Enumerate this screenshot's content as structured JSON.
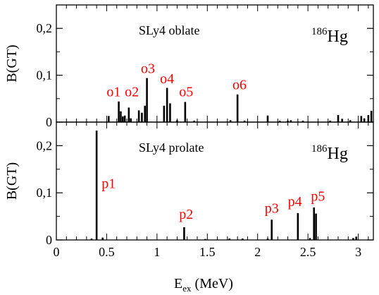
{
  "chart_data": {
    "type": "bar",
    "xlabel_main": "E",
    "xlabel_sub": "ex",
    "xlabel_unit": " (MeV)",
    "xlim": [
      0,
      3.15
    ],
    "x_ticks": [
      0,
      0.5,
      1,
      1.5,
      2,
      2.5,
      3
    ],
    "x_tick_labels": [
      "0",
      "0.5",
      "1",
      "1.5",
      "2",
      "2.5",
      "3"
    ],
    "panels": [
      {
        "name": "oblate",
        "title": "SLy4 oblate",
        "nucleus_mass": "186",
        "nucleus_symbol": "Hg",
        "ylabel": "B(GT)",
        "ylim": [
          0,
          0.25
        ],
        "y_ticks": [
          0,
          0.1,
          0.2
        ],
        "y_tick_labels": [
          "0",
          "0,1",
          "0,2"
        ],
        "x": [
          0.52,
          0.62,
          0.64,
          0.66,
          0.68,
          0.72,
          0.74,
          0.82,
          0.85,
          0.88,
          0.9,
          1.07,
          1.1,
          1.13,
          1.2,
          1.28,
          1.37,
          1.73,
          1.8,
          1.87,
          2.1,
          2.22,
          2.3,
          2.33,
          2.45,
          2.72,
          2.8,
          2.84,
          2.92,
          3.03,
          3.06,
          3.1,
          3.13
        ],
        "values": [
          0.013,
          0.044,
          0.023,
          0.012,
          0.014,
          0.031,
          0.008,
          0.025,
          0.02,
          0.035,
          0.094,
          0.035,
          0.073,
          0.04,
          0.004,
          0.043,
          0.003,
          0.004,
          0.059,
          0.003,
          0.014,
          0.003,
          0.003,
          0.004,
          0.003,
          0.003,
          0.015,
          0.007,
          0.004,
          0.013,
          0.008,
          0.015,
          0.024
        ],
        "annotations": [
          {
            "text": "o1",
            "x": 0.57,
            "y": 0.055
          },
          {
            "text": "o2",
            "x": 0.75,
            "y": 0.055
          },
          {
            "text": "o3",
            "x": 0.91,
            "y": 0.105
          },
          {
            "text": "o4",
            "x": 1.1,
            "y": 0.083
          },
          {
            "text": "o5",
            "x": 1.29,
            "y": 0.055
          },
          {
            "text": "o6",
            "x": 1.82,
            "y": 0.07
          }
        ]
      },
      {
        "name": "prolate",
        "title": "SLy4 prolate",
        "nucleus_mass": "186",
        "nucleus_symbol": "Hg",
        "ylabel": "B(GT)",
        "ylim": [
          0,
          0.25
        ],
        "y_ticks": [
          0,
          0.1,
          0.2
        ],
        "y_tick_labels": [
          "0",
          "0,1",
          "0,2"
        ],
        "x": [
          0.35,
          0.4,
          0.46,
          1.27,
          1.48,
          1.72,
          1.85,
          2.1,
          2.14,
          2.4,
          2.52,
          2.56,
          2.58,
          2.95,
          2.98
        ],
        "values": [
          0.003,
          0.232,
          0.005,
          0.027,
          0.002,
          0.003,
          0.003,
          0.003,
          0.043,
          0.057,
          0.004,
          0.069,
          0.056,
          0.004,
          0.007
        ],
        "annotations": [
          {
            "text": "p1",
            "x": 0.52,
            "y": 0.11
          },
          {
            "text": "p2",
            "x": 1.29,
            "y": 0.045
          },
          {
            "text": "p3",
            "x": 2.14,
            "y": 0.058
          },
          {
            "text": "p4",
            "x": 2.37,
            "y": 0.072
          },
          {
            "text": "p5",
            "x": 2.6,
            "y": 0.083
          }
        ]
      }
    ]
  }
}
